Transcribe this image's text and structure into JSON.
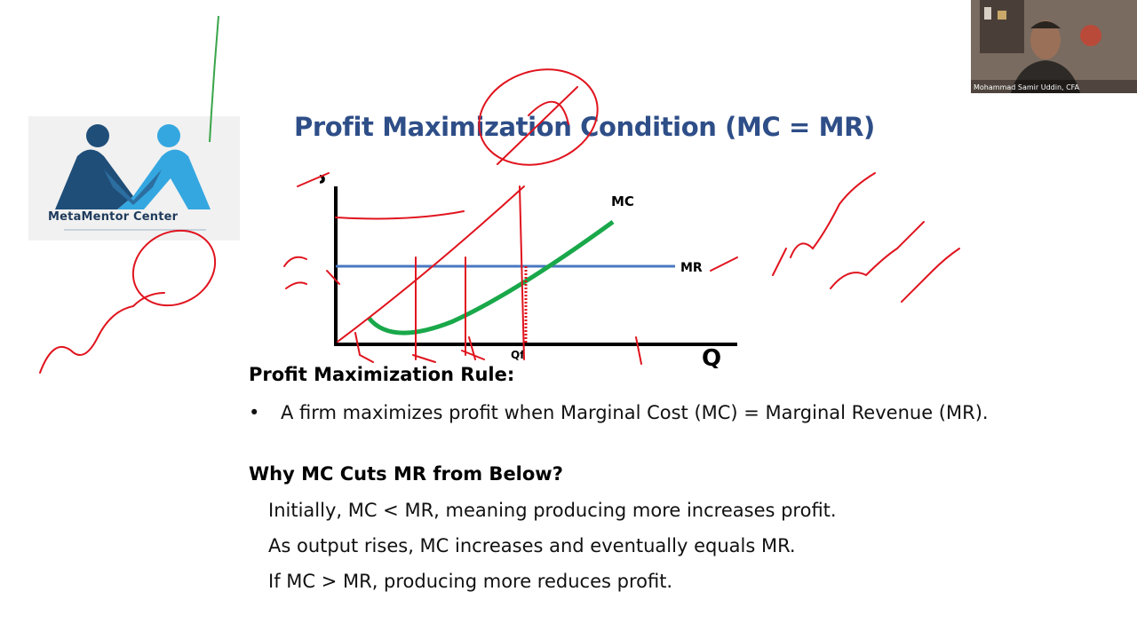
{
  "slide": {
    "title": "Profit Maximization Condition (MC = MR)",
    "logo_text": "MetaMentor Center",
    "rule_heading": "Profit Maximization Rule:",
    "bullet": "A firm maximizes profit when Marginal Cost (MC) = Marginal Revenue (MR).",
    "why_heading": "Why MC Cuts MR from Below?",
    "lines": [
      "Initially, MC < MR, meaning producing more increases profit.",
      "As output rises, MC increases and eventually equals MR.",
      "If MC > MR, producing more reduces profit."
    ]
  },
  "chart_labels": {
    "p": "P",
    "q": "Q",
    "mc": "MC",
    "mr": "MR",
    "qf": "Qf"
  },
  "video": {
    "caption": "Mohammad Samir Uddin, CFA"
  },
  "colors": {
    "title": "#2e4e88",
    "mc_curve": "#19a84a",
    "mr_line": "#4a78c0",
    "ink": "#e0141e",
    "logo_dark": "#1f4e79",
    "logo_light": "#35a7e0"
  }
}
